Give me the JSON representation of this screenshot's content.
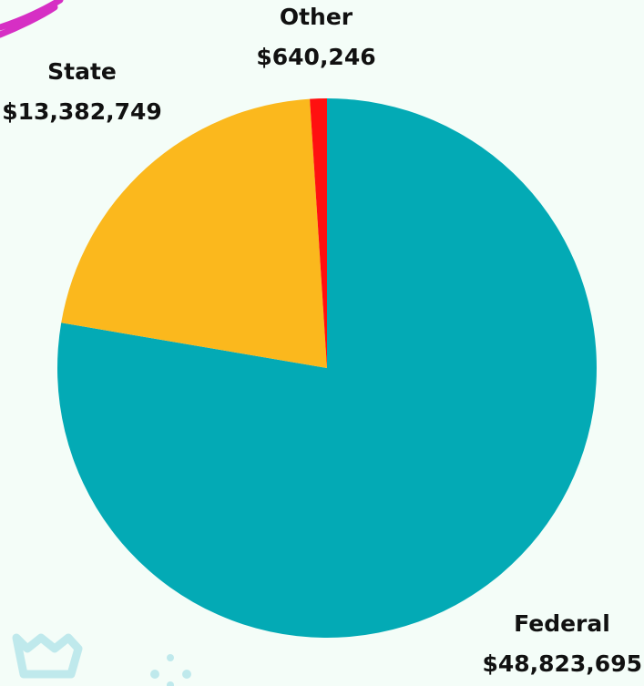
{
  "chart_data": {
    "type": "pie",
    "categories": [
      "Federal",
      "State",
      "Other"
    ],
    "values": [
      48823695,
      13382749,
      640246
    ],
    "value_labels": [
      "$48,823,695",
      "$13,382,749",
      "$640,246"
    ],
    "colors": [
      "#03aab5",
      "#fbb81d",
      "#ff1010"
    ]
  }
}
